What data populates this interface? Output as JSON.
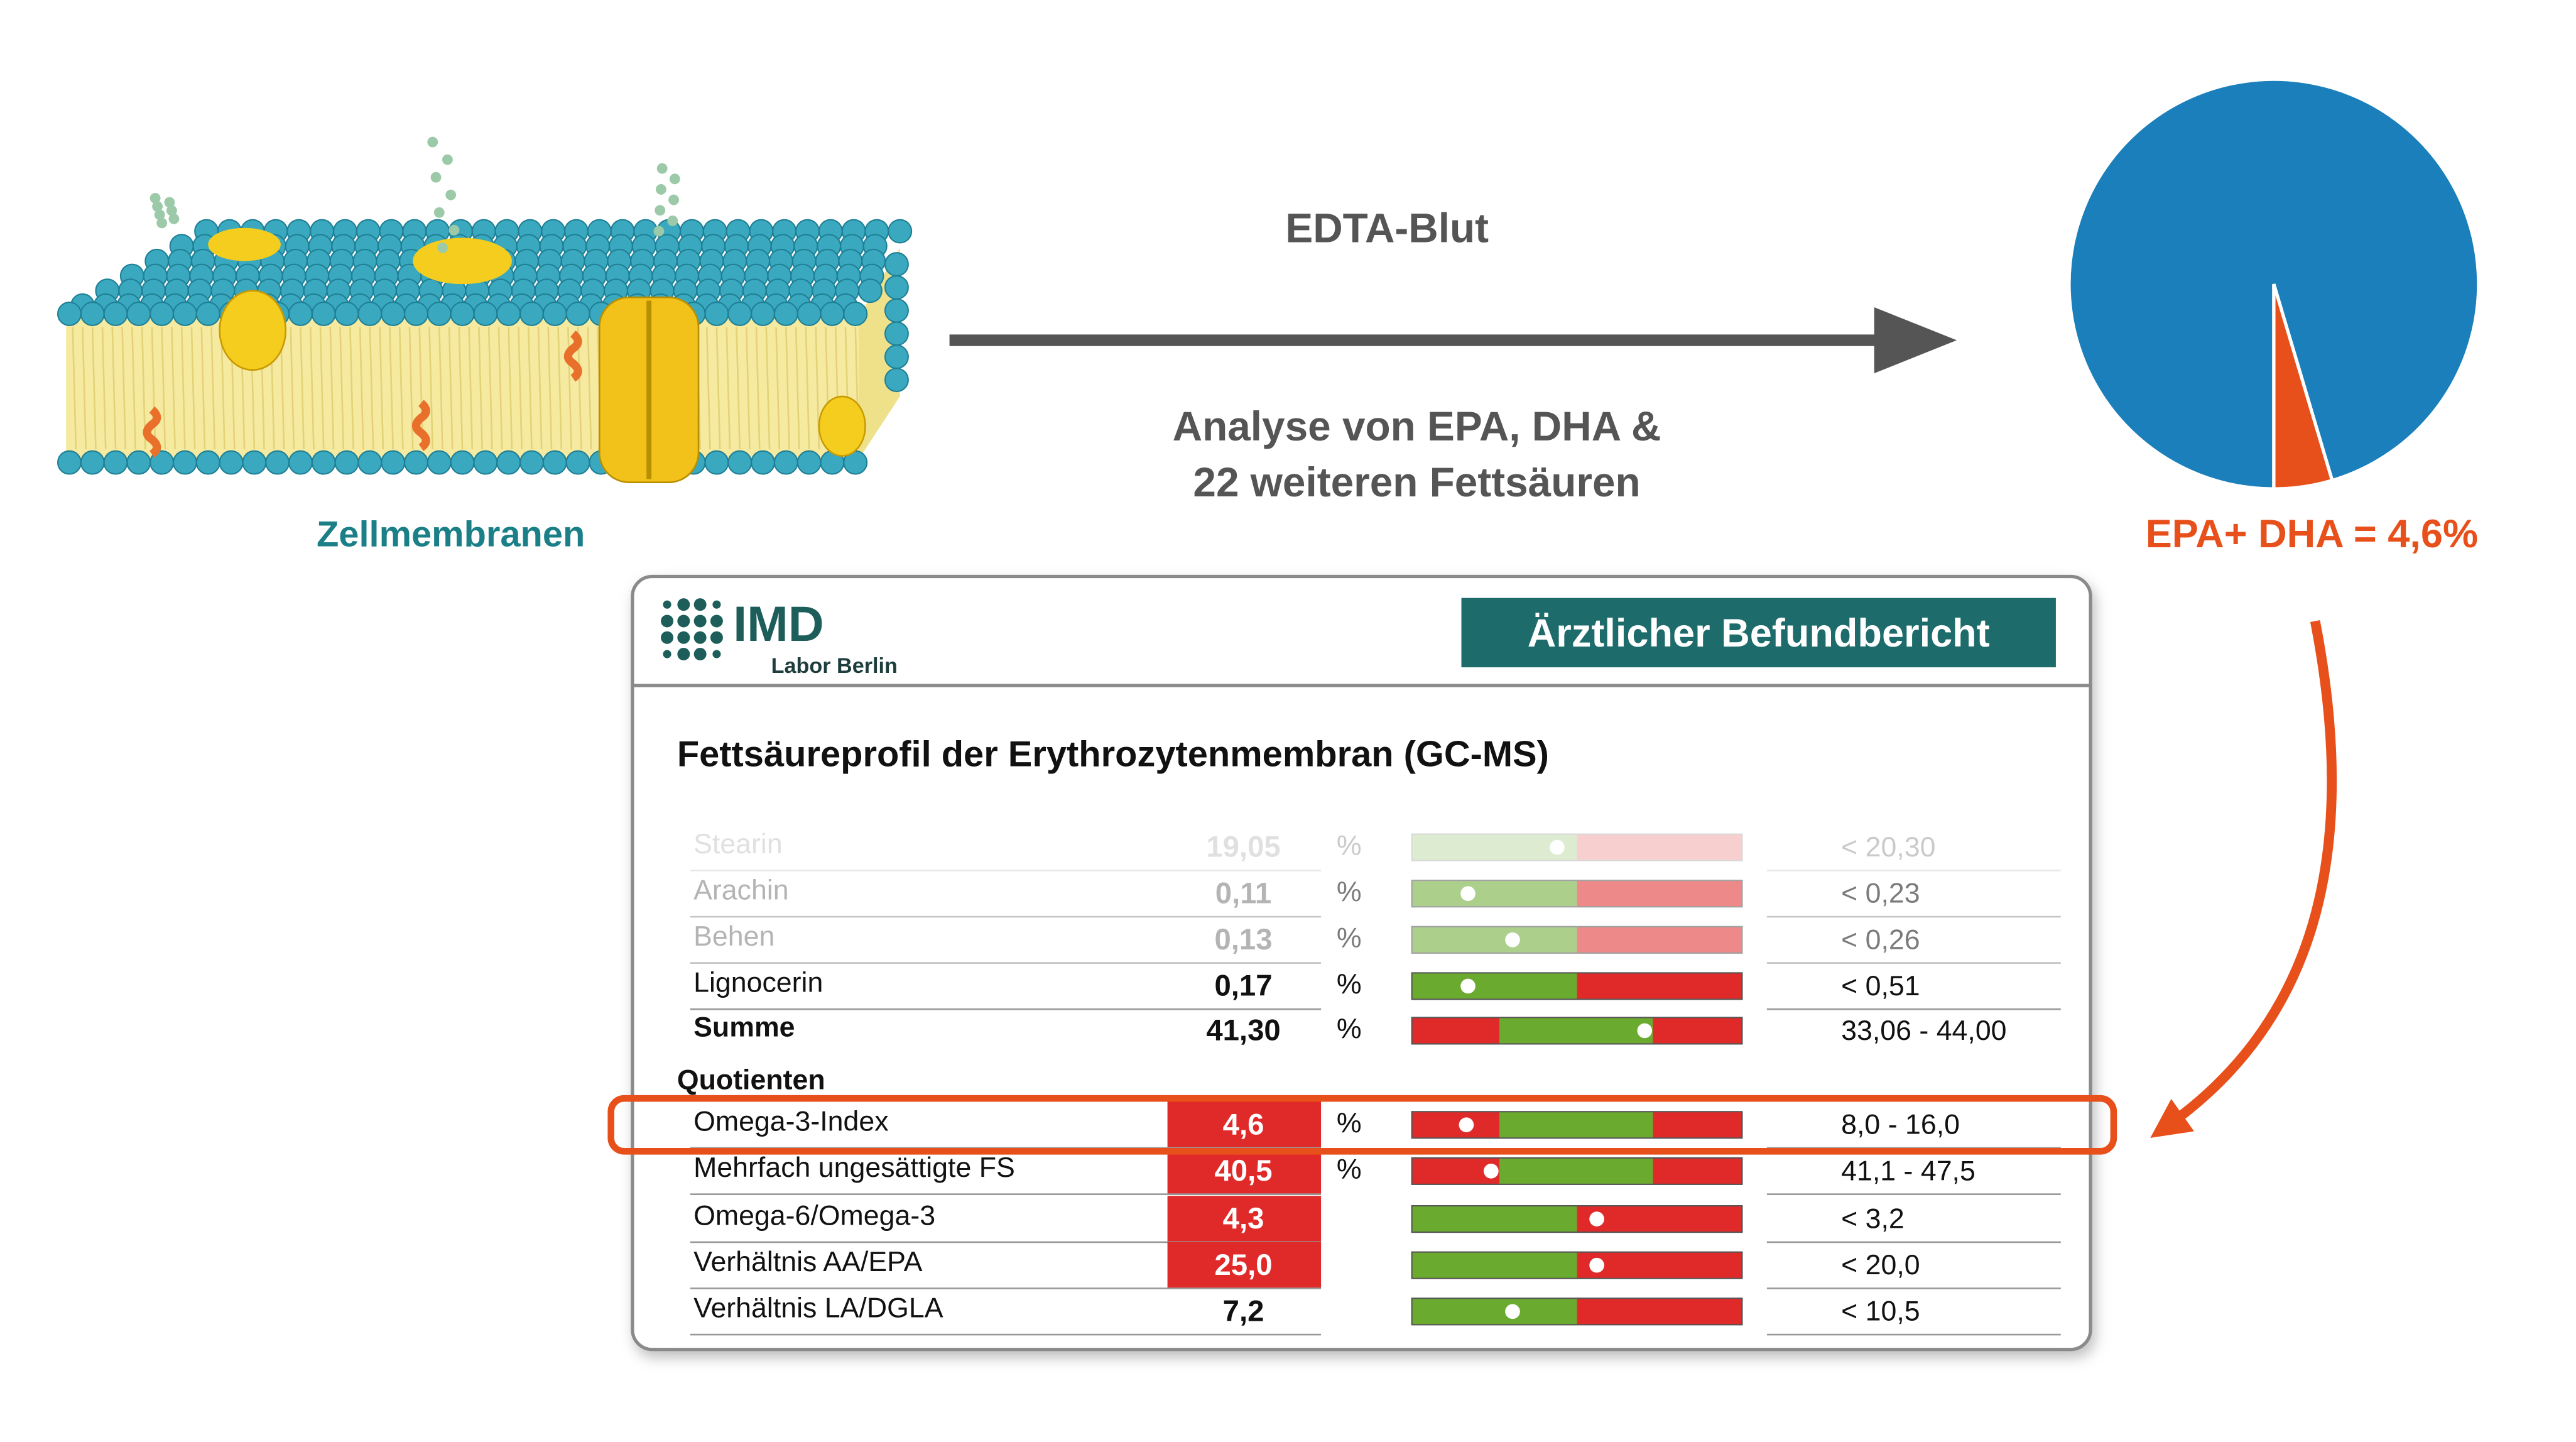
{
  "illustration": {
    "label": "Zellmembranen"
  },
  "process": {
    "sample": "EDTA-Blut",
    "analysis": [
      "Analyse von EPA, DHA &",
      "22 weiteren Fettsäuren"
    ]
  },
  "chart_data": {
    "type": "pie",
    "values": [
      95.4,
      4.6
    ],
    "colors": [
      "#1a7fba",
      "#e8501b"
    ],
    "label": "EPA+ DHA = 4,6%"
  },
  "report": {
    "logo": {
      "name": "IMD",
      "subtitle": "Labor Berlin"
    },
    "heading": "Ärztlicher Befundbericht",
    "title": "Fettsäureprofil der Erythrozytenmembran (GC-MS)",
    "rows": [
      {
        "name": "Stearin",
        "value": "19,05",
        "unit": "%",
        "reference": "< 20,30"
      },
      {
        "name": "Arachin",
        "value": "0,11",
        "unit": "%",
        "reference": "< 0,23"
      },
      {
        "name": "Behen",
        "value": "0,13",
        "unit": "%",
        "reference": "< 0,26"
      },
      {
        "name": "Lignocerin",
        "value": "0,17",
        "unit": "%",
        "reference": "< 0,51"
      },
      {
        "name": "Summe",
        "value": "41,30",
        "unit": "%",
        "reference": "33,06 - 44,00"
      }
    ],
    "section": {
      "title": "Quotienten",
      "rows": [
        {
          "name": "Omega-3-Index",
          "value": "4,6",
          "unit": "%",
          "reference": "8,0 - 16,0"
        },
        {
          "name": "Mehrfach ungesättigte FS",
          "value": "40,5",
          "unit": "%",
          "reference": "41,1 - 47,5"
        },
        {
          "name": "Omega-6/Omega-3",
          "value": "4,3",
          "reference": "< 3,2"
        },
        {
          "name": "Verhältnis AA/EPA",
          "value": "25,0",
          "reference": "< 20,0"
        },
        {
          "name": "Verhältnis LA/DGLA",
          "value": "7,2",
          "reference": "< 10,5"
        }
      ]
    }
  }
}
